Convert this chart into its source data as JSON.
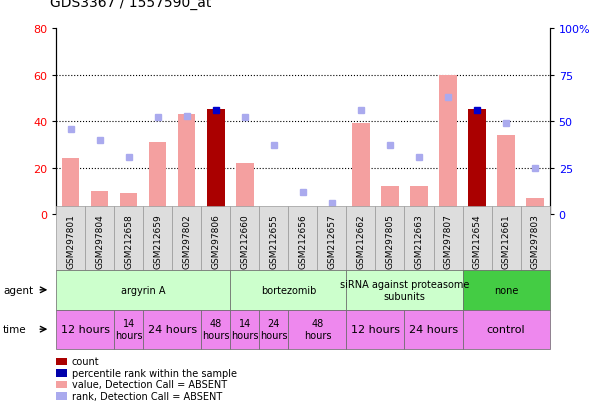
{
  "title": "GDS3367 / 1557590_at",
  "samples": [
    "GSM297801",
    "GSM297804",
    "GSM212658",
    "GSM212659",
    "GSM297802",
    "GSM297806",
    "GSM212660",
    "GSM212655",
    "GSM212656",
    "GSM212657",
    "GSM212662",
    "GSM297805",
    "GSM212663",
    "GSM297807",
    "GSM212654",
    "GSM212661",
    "GSM297803"
  ],
  "bar_values": [
    24,
    10,
    9,
    31,
    43,
    45,
    22,
    2,
    2,
    1,
    39,
    12,
    12,
    60,
    45,
    34,
    7
  ],
  "bar_colors": [
    "#f4a0a0",
    "#f4a0a0",
    "#f4a0a0",
    "#f4a0a0",
    "#f4a0a0",
    "#aa0000",
    "#f4a0a0",
    "#f4a0a0",
    "#f4a0a0",
    "#f4a0a0",
    "#f4a0a0",
    "#f4a0a0",
    "#f4a0a0",
    "#f4a0a0",
    "#aa0000",
    "#f4a0a0",
    "#f4a0a0"
  ],
  "rank_values": [
    46,
    40,
    31,
    52,
    53,
    56,
    52,
    37,
    12,
    6,
    56,
    37,
    31,
    63,
    56,
    49,
    25
  ],
  "rank_is_present": [
    false,
    false,
    false,
    false,
    false,
    true,
    false,
    false,
    false,
    false,
    false,
    false,
    false,
    false,
    true,
    false,
    false
  ],
  "ylim_left": [
    0,
    80
  ],
  "ylim_right": [
    0,
    100
  ],
  "yticks_left": [
    0,
    20,
    40,
    60,
    80
  ],
  "yticks_right": [
    0,
    25,
    50,
    75,
    100
  ],
  "ytick_labels_right": [
    "0",
    "25",
    "50",
    "75",
    "100%"
  ],
  "agent_groups": [
    {
      "label": "argyrin A",
      "start": 0,
      "end": 6,
      "color": "#ccffcc"
    },
    {
      "label": "bortezomib",
      "start": 6,
      "end": 10,
      "color": "#ccffcc"
    },
    {
      "label": "siRNA against proteasome\nsubunits",
      "start": 10,
      "end": 14,
      "color": "#ccffcc"
    },
    {
      "label": "none",
      "start": 14,
      "end": 17,
      "color": "#44cc44"
    }
  ],
  "time_groups": [
    {
      "label": "12 hours",
      "start": 0,
      "end": 2,
      "fontsize": 8
    },
    {
      "label": "14\nhours",
      "start": 2,
      "end": 3,
      "fontsize": 7
    },
    {
      "label": "24 hours",
      "start": 3,
      "end": 5,
      "fontsize": 8
    },
    {
      "label": "48\nhours",
      "start": 5,
      "end": 6,
      "fontsize": 7
    },
    {
      "label": "14\nhours",
      "start": 6,
      "end": 7,
      "fontsize": 7
    },
    {
      "label": "24\nhours",
      "start": 7,
      "end": 8,
      "fontsize": 7
    },
    {
      "label": "48\nhours",
      "start": 8,
      "end": 10,
      "fontsize": 7
    },
    {
      "label": "12 hours",
      "start": 10,
      "end": 12,
      "fontsize": 8
    },
    {
      "label": "24 hours",
      "start": 12,
      "end": 14,
      "fontsize": 8
    },
    {
      "label": "control",
      "start": 14,
      "end": 17,
      "fontsize": 8
    }
  ],
  "sample_label_fontsize": 6.5,
  "title_fontsize": 10,
  "legend_items": [
    {
      "color": "#aa0000",
      "label": "count"
    },
    {
      "color": "#0000aa",
      "label": "percentile rank within the sample"
    },
    {
      "color": "#f4a0a0",
      "label": "value, Detection Call = ABSENT"
    },
    {
      "color": "#aaaaee",
      "label": "rank, Detection Call = ABSENT"
    }
  ]
}
